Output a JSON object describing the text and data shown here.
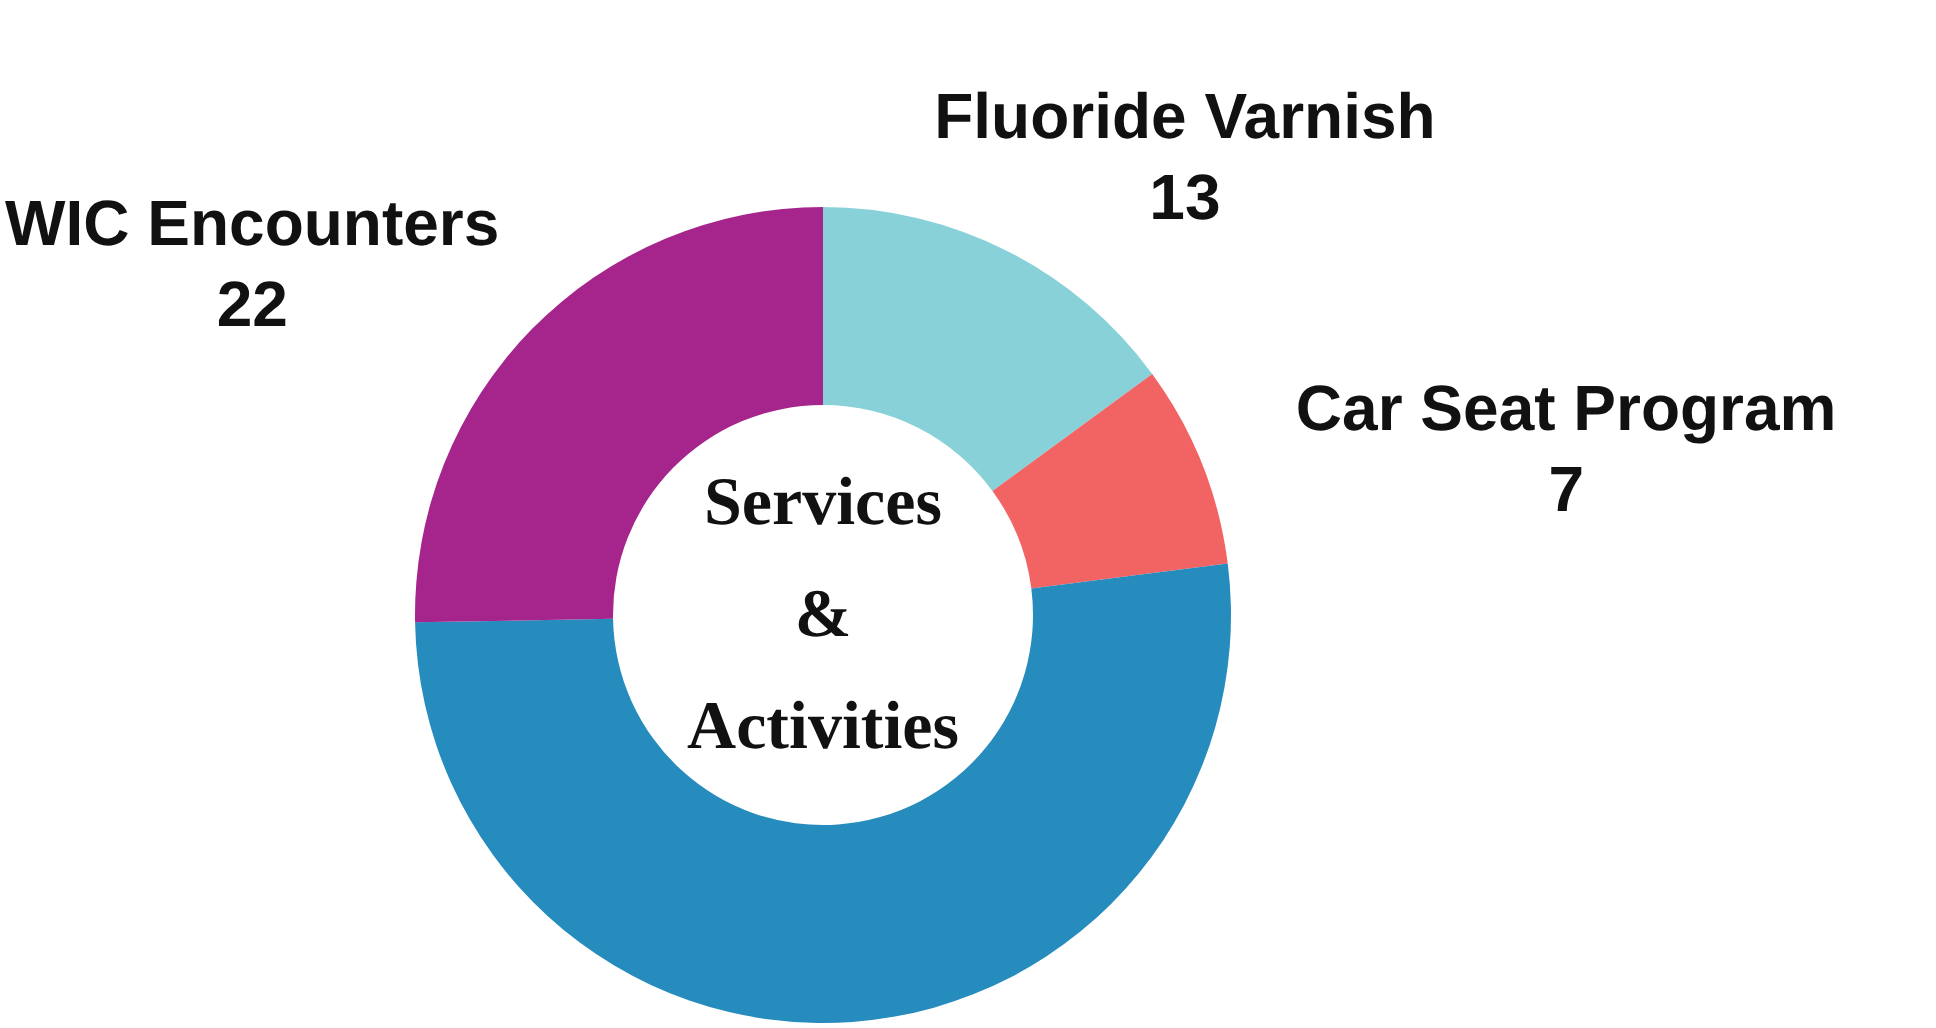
{
  "chart_data": {
    "type": "donut",
    "title": "Services\n&\nActivities",
    "categories": [
      "Fluoride Varnish",
      "Car Seat Program",
      null,
      "WIC Encounters"
    ],
    "values": [
      13,
      7,
      45,
      22
    ],
    "value_labels": [
      "13",
      "7",
      null,
      "22"
    ],
    "colors": [
      "#88d1d9",
      "#f26464",
      "#268bbd",
      "#a6258c"
    ],
    "legend": false
  }
}
